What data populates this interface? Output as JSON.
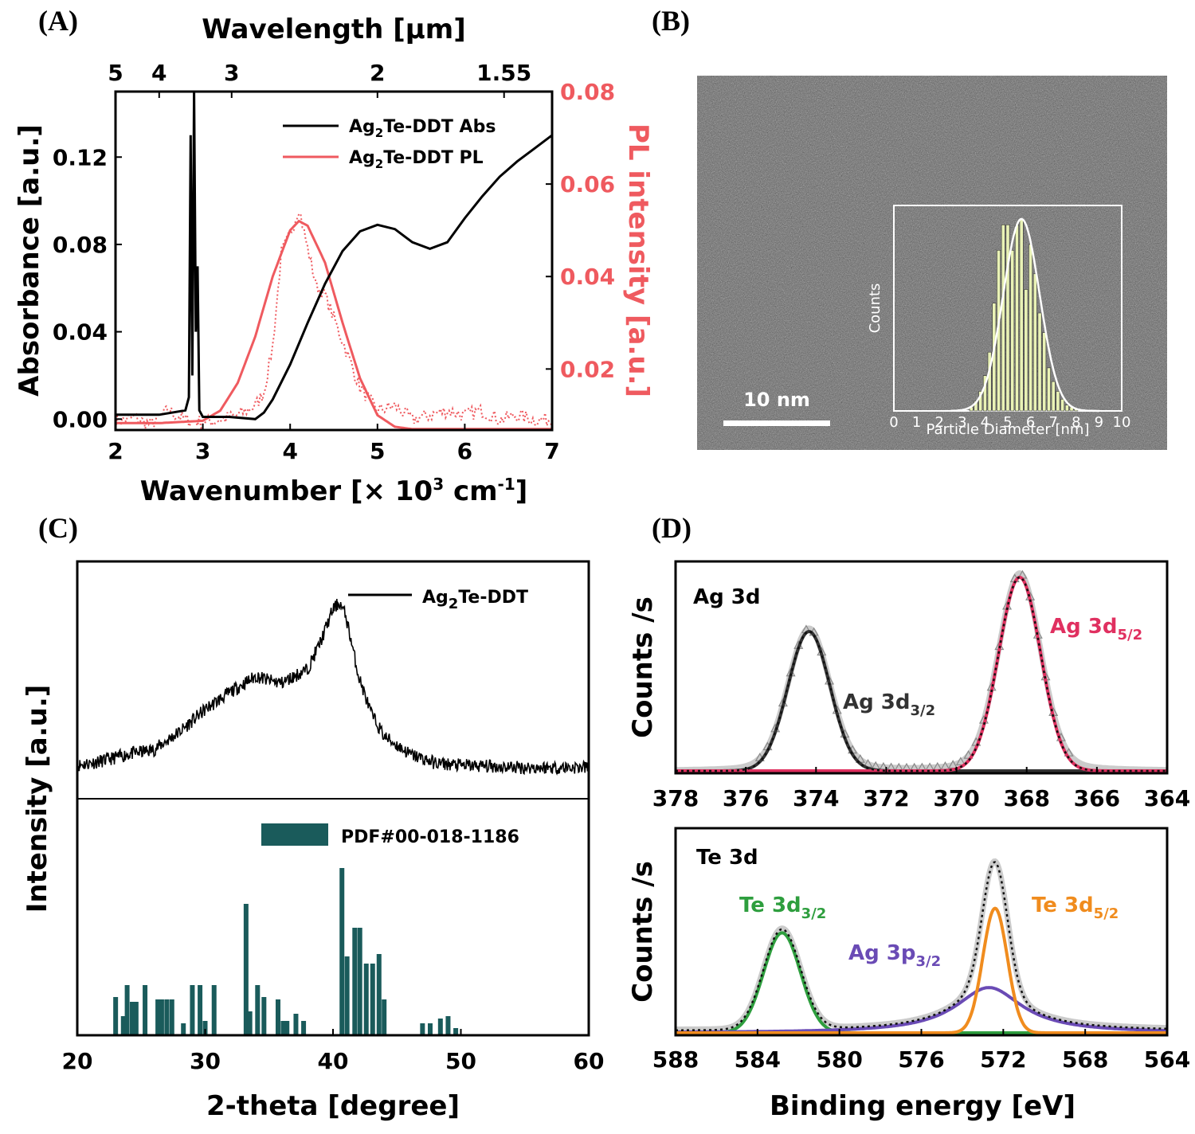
{
  "colors": {
    "abs": "#000000",
    "pl": "#ef5a5f",
    "teal": "#1a5b5b",
    "ag52": "#e03060",
    "te32": "#2e9e3e",
    "te52": "#f08c1e",
    "ag3p": "#6a4bb5",
    "grey": "#a8a8a8",
    "inset_bar": "#e9f2b6"
  },
  "panel_labels": {
    "a": "(A)",
    "b": "(B)",
    "c": "(C)",
    "d": "(D)"
  },
  "chart_data": [
    {
      "id": "A",
      "type": "line",
      "xlabel_main": "Wavenumber [× 10",
      "xlabel_sup": "3",
      "xlabel_mid": " cm",
      "xlabel_sup2": "-1",
      "xlabel_end": "]",
      "x_top_label": "Wavelength [μm]",
      "ylabel_left": "Absorbance [a.u.]",
      "ylabel_right": "PL intensity [a.u.]",
      "xlim": [
        2,
        7
      ],
      "ylim_left": [
        -0.005,
        0.15
      ],
      "ylim_right": [
        0.0068,
        0.08
      ],
      "x_ticks": [
        "2",
        "3",
        "4",
        "5",
        "6",
        "7"
      ],
      "y_ticks_left": [
        "0.00",
        "0.04",
        "0.08",
        "0.12"
      ],
      "y_ticks_right": [
        "0.02",
        "0.04",
        "0.06",
        "0.08"
      ],
      "top_ticks": [
        {
          "label": "5",
          "x": 2.0
        },
        {
          "label": "4",
          "x": 2.5
        },
        {
          "label": "3",
          "x": 3.33
        },
        {
          "label": "2",
          "x": 5.0
        },
        {
          "label": "1.55",
          "x": 6.45
        }
      ],
      "legend": [
        {
          "name_a": "Ag",
          "sub": "2",
          "name_b": "Te-DDT Abs",
          "color": "#000000"
        },
        {
          "name_a": "Ag",
          "sub": "2",
          "name_b": "Te-DDT PL",
          "color": "#ef5a5f"
        }
      ],
      "series": [
        {
          "name": "Ag2Te-DDT Abs",
          "axis": "left",
          "x": [
            2.0,
            2.5,
            2.8,
            2.84,
            2.86,
            2.88,
            2.9,
            2.92,
            2.94,
            2.96,
            3.0,
            3.3,
            3.6,
            3.7,
            3.8,
            4.0,
            4.2,
            4.4,
            4.6,
            4.8,
            5.0,
            5.2,
            5.4,
            5.6,
            5.8,
            6.0,
            6.2,
            6.4,
            6.6,
            6.8,
            7.0
          ],
          "y": [
            0.002,
            0.002,
            0.004,
            0.01,
            0.13,
            0.02,
            0.15,
            0.04,
            0.07,
            0.004,
            0.001,
            0.001,
            0.0,
            0.003,
            0.009,
            0.025,
            0.044,
            0.062,
            0.077,
            0.086,
            0.089,
            0.087,
            0.081,
            0.078,
            0.081,
            0.092,
            0.102,
            0.111,
            0.118,
            0.124,
            0.13
          ]
        },
        {
          "name": "Ag2Te-DDT PL (fit)",
          "axis": "right",
          "x": [
            2.0,
            2.5,
            3.0,
            3.2,
            3.4,
            3.6,
            3.8,
            4.0,
            4.1,
            4.2,
            4.4,
            4.6,
            4.8,
            5.0,
            5.2,
            5.4,
            6.0,
            7.0
          ],
          "y": [
            0.0083,
            0.0083,
            0.0088,
            0.011,
            0.017,
            0.027,
            0.04,
            0.05,
            0.052,
            0.051,
            0.043,
            0.03,
            0.018,
            0.01,
            0.0075,
            0.007,
            0.007,
            0.007
          ]
        },
        {
          "name": "Ag2Te-DDT PL (data)",
          "axis": "right",
          "x": [
            2.0,
            2.2,
            2.4,
            2.6,
            2.8,
            3.0,
            3.2,
            3.4,
            3.6,
            3.7,
            3.8,
            3.9,
            4.0,
            4.1,
            4.2,
            4.3,
            4.4,
            4.6,
            4.8,
            5.0,
            5.2,
            5.4,
            5.6,
            5.8,
            6.0,
            6.2,
            6.4,
            6.6,
            6.8,
            7.0
          ],
          "y": [
            0.0085,
            0.0095,
            0.008,
            0.011,
            0.009,
            0.0085,
            0.009,
            0.01,
            0.012,
            0.015,
            0.025,
            0.045,
            0.049,
            0.055,
            0.046,
            0.038,
            0.036,
            0.026,
            0.016,
            0.011,
            0.012,
            0.009,
            0.01,
            0.011,
            0.01,
            0.011,
            0.009,
            0.01,
            0.009,
            0.009
          ]
        }
      ]
    },
    {
      "id": "B-inset",
      "type": "bar",
      "xlabel": "Particle Diameter [nm]",
      "ylabel": "Counts",
      "xlim": [
        0,
        10
      ],
      "x_ticks": [
        "0",
        "1",
        "2",
        "3",
        "4",
        "5",
        "6",
        "7",
        "8",
        "9",
        "10"
      ],
      "bin_centers": [
        3.4,
        3.6,
        3.8,
        4.0,
        4.2,
        4.4,
        4.6,
        4.8,
        5.0,
        5.2,
        5.4,
        5.6,
        5.8,
        6.0,
        6.2,
        6.4,
        6.6,
        6.8,
        7.0,
        7.2,
        7.4,
        7.6,
        7.8,
        8.0
      ],
      "values": [
        0.02,
        0.05,
        0.1,
        0.18,
        0.3,
        0.55,
        0.82,
        0.95,
        0.95,
        0.82,
        0.95,
        0.98,
        0.62,
        0.85,
        0.7,
        0.5,
        0.4,
        0.22,
        0.15,
        0.1,
        0.06,
        0.03,
        0.02,
        0.01
      ],
      "fit_mean": 5.6,
      "fit_sigma": 0.8
    },
    {
      "id": "C",
      "type": "line",
      "xlabel": "2-theta [degree]",
      "ylabel": "Intensity [a.u.]",
      "xlim": [
        20,
        60
      ],
      "x_ticks": [
        "20",
        "30",
        "40",
        "50",
        "60"
      ],
      "legend_top": {
        "name_a": "Ag",
        "sub": "2",
        "name_b": "Te-DDT"
      },
      "legend_bottom": "PDF#00-018-1186",
      "xrd_series": {
        "name": "Ag2Te-DDT",
        "x": [
          20,
          22,
          24,
          26,
          28,
          30,
          32,
          34,
          35,
          36,
          38,
          39,
          40,
          40.5,
          41,
          42,
          43,
          44,
          46,
          48,
          50,
          55,
          60
        ],
        "y": [
          0.05,
          0.07,
          0.1,
          0.12,
          0.2,
          0.3,
          0.38,
          0.45,
          0.43,
          0.42,
          0.48,
          0.6,
          0.75,
          0.78,
          0.72,
          0.45,
          0.28,
          0.18,
          0.1,
          0.06,
          0.05,
          0.04,
          0.04
        ]
      },
      "reference_peaks": {
        "x": [
          23.0,
          23.6,
          23.9,
          24.3,
          24.6,
          25.3,
          26.3,
          26.6,
          27.0,
          27.4,
          28.3,
          29.0,
          29.6,
          30.0,
          30.7,
          33.2,
          33.5,
          34.1,
          34.6,
          35.7,
          36.1,
          36.4,
          37.1,
          37.7,
          40.7,
          41.1,
          41.7,
          42.1,
          42.6,
          43.1,
          43.6,
          44.0,
          47.0,
          47.6,
          48.4,
          49.0,
          49.6
        ],
        "y": [
          0.16,
          0.08,
          0.21,
          0.14,
          0.14,
          0.21,
          0.15,
          0.15,
          0.15,
          0.15,
          0.05,
          0.21,
          0.21,
          0.06,
          0.21,
          0.55,
          0.1,
          0.21,
          0.16,
          0.15,
          0.06,
          0.06,
          0.09,
          0.06,
          0.7,
          0.33,
          0.45,
          0.45,
          0.3,
          0.3,
          0.34,
          0.15,
          0.05,
          0.05,
          0.07,
          0.08,
          0.03
        ]
      }
    },
    {
      "id": "D-top",
      "type": "line",
      "title": "Ag 3d",
      "ylabel": "Counts /s",
      "xlim": [
        378,
        364
      ],
      "x_ticks": [
        "378",
        "376",
        "374",
        "372",
        "370",
        "368",
        "366",
        "364"
      ],
      "peaks": [
        {
          "name_a": "Ag 3d",
          "sub": "3/2",
          "center": 374.2,
          "height": 0.72,
          "width": 0.6
        },
        {
          "name_a": "Ag 3d",
          "sub": "5/2",
          "center": 368.2,
          "height": 1.0,
          "width": 0.6
        }
      ]
    },
    {
      "id": "D-bottom",
      "type": "line",
      "title": "Te 3d",
      "ylabel": "Counts /s",
      "xlabel": "Binding energy [eV]",
      "xlim": [
        588,
        564
      ],
      "x_ticks": [
        "588",
        "584",
        "580",
        "576",
        "572",
        "568",
        "564"
      ],
      "peaks": [
        {
          "name_a": "Te 3d",
          "sub": "3/2",
          "center": 582.8,
          "height": 0.53,
          "width": 0.9,
          "color": "#2e9e3e"
        },
        {
          "name_a": "Te 3d",
          "sub": "5/2",
          "center": 572.4,
          "height": 0.66,
          "width": 0.6,
          "color": "#f08c1e"
        },
        {
          "name_a": "Ag 3p",
          "sub": "3/2",
          "center": 572.7,
          "height": 0.24,
          "width": 1.8,
          "color": "#6a4bb5"
        }
      ]
    }
  ],
  "panel_b": {
    "scalebar_label": "10 nm"
  }
}
